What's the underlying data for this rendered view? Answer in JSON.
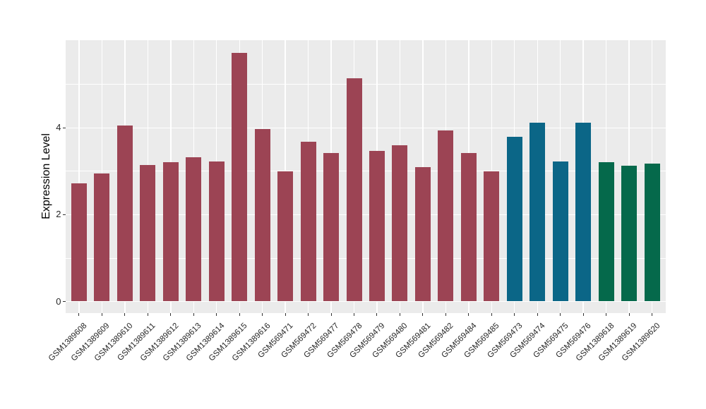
{
  "figure": {
    "background": "#FFFFFF",
    "panel_background": "#EBEBEB",
    "grid_color": "#FFFFFF",
    "tick_mark_color": "#333333",
    "axis_text_color": "#262626",
    "axis_title_color": "#000000"
  },
  "chart_data": {
    "type": "bar",
    "title": "",
    "xlabel": "",
    "ylabel": "Expression Level",
    "ylim": [
      0,
      6.02
    ],
    "yticks": [
      0,
      2,
      4
    ],
    "yticks_minor": [
      1,
      3,
      5
    ],
    "grid": true,
    "legend_position": "none",
    "x_tick_angle_deg": 45,
    "categories": [
      "GSM1389608",
      "GSM1389609",
      "GSM1389610",
      "GSM1389611",
      "GSM1389612",
      "GSM1389613",
      "GSM1389614",
      "GSM1389615",
      "GSM1389616",
      "GSM569471",
      "GSM569472",
      "GSM569477",
      "GSM569478",
      "GSM569479",
      "GSM569480",
      "GSM569481",
      "GSM569482",
      "GSM569484",
      "GSM569485",
      "GSM569473",
      "GSM569474",
      "GSM569475",
      "GSM569476",
      "GSM1389618",
      "GSM1389619",
      "GSM1389620"
    ],
    "values": [
      2.72,
      2.95,
      4.06,
      3.14,
      3.21,
      3.33,
      3.22,
      5.73,
      3.97,
      3.0,
      3.68,
      3.42,
      5.14,
      3.47,
      3.6,
      3.1,
      3.94,
      3.42,
      3.0,
      3.79,
      4.12,
      3.23,
      4.12,
      3.21,
      3.13,
      3.18
    ],
    "groups": [
      "A",
      "A",
      "A",
      "A",
      "A",
      "A",
      "A",
      "A",
      "A",
      "A",
      "A",
      "A",
      "A",
      "A",
      "A",
      "A",
      "A",
      "A",
      "A",
      "B",
      "B",
      "B",
      "B",
      "C",
      "C",
      "C"
    ],
    "group_colors": {
      "A": "#9C4454",
      "B": "#0B6687",
      "C": "#05694B"
    }
  }
}
